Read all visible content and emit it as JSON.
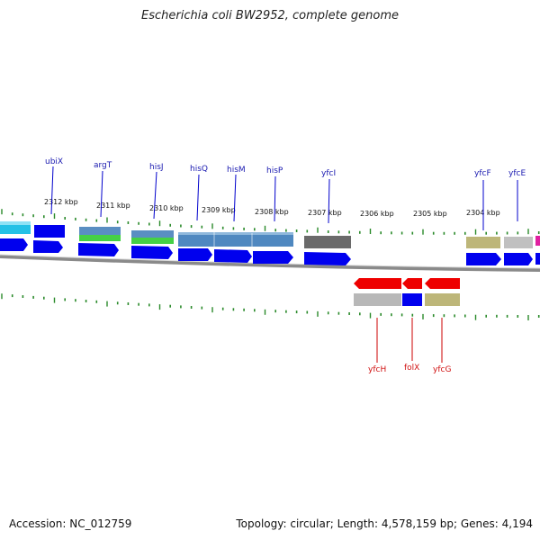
{
  "title": "Escherichia coli BW2952, complete genome",
  "accession_label": "Accession: NC_012759",
  "topology_label": "Topology: circular; Length: 4,578,159 bp; Genes: 4,194",
  "colors": {
    "forward_gene": "#0000ee",
    "reverse_gene": "#ee0000",
    "tick": "#2a8a2a",
    "label_forward": "#1a1ab0",
    "label_reverse": "#d01010",
    "backbone": "#888888"
  },
  "kbp_labels": [
    "2312 kbp",
    "2311 kbp",
    "2310 kbp",
    "2309 kbp",
    "2308 kbp",
    "2307 kbp",
    "2306 kbp",
    "2305 kbp",
    "2304 kbp"
  ],
  "forward_gene_labels": [
    "ubiX",
    "argT",
    "hisJ",
    "hisQ",
    "hisM",
    "hisP",
    "yfcI",
    "yfcF",
    "yfcE"
  ],
  "reverse_gene_labels": [
    "yfcH",
    "folX",
    "yfcG"
  ]
}
